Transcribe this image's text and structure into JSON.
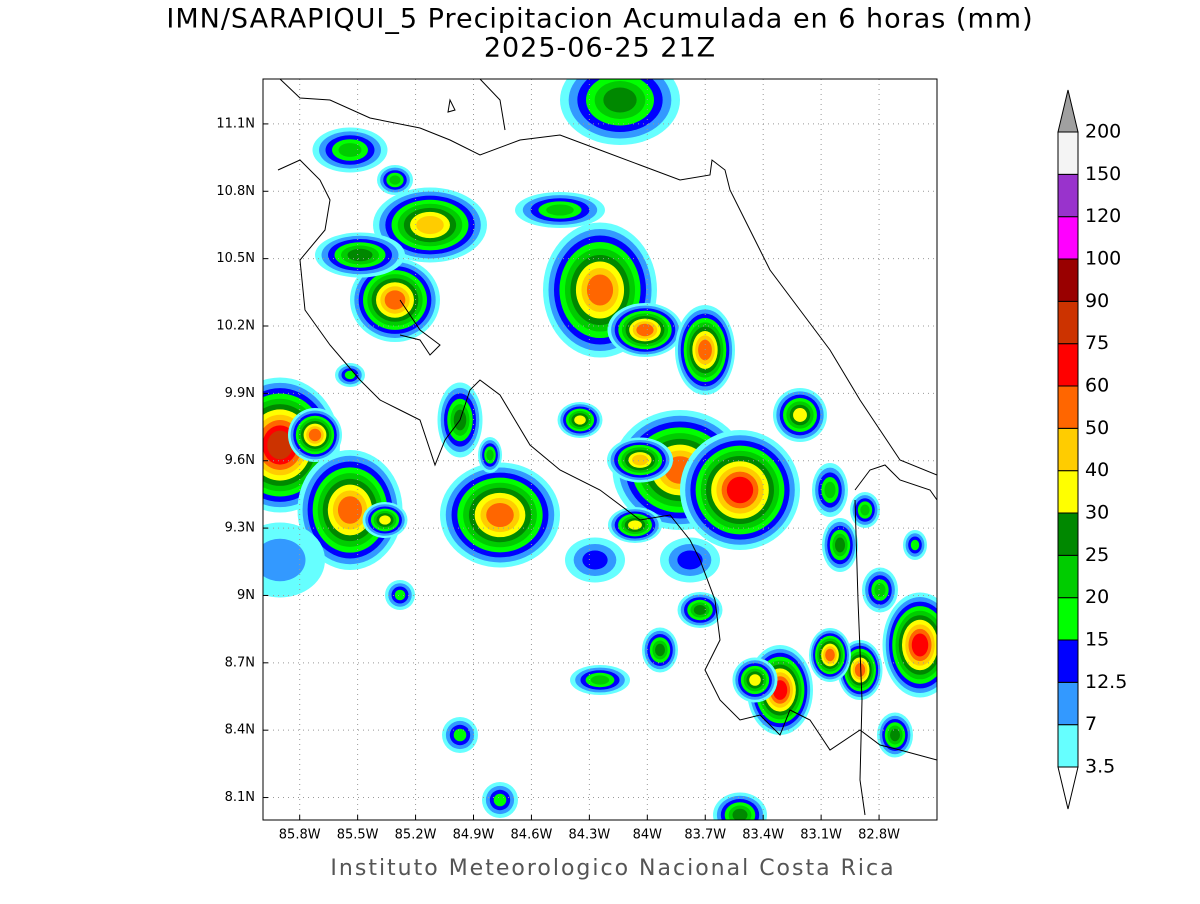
{
  "header": {
    "title": "IMN/SARAPIQUI_5 Precipitacion Acumulada en 6 horas (mm)",
    "subtitle": "2025-06-25 21Z"
  },
  "map": {
    "lonlim": [
      -85.99,
      -82.5
    ],
    "latlim": [
      8.0,
      11.3
    ],
    "grid": true,
    "lon_ticks": [
      {
        "value": -85.8,
        "label": "85.8W"
      },
      {
        "value": -85.5,
        "label": "85.5W"
      },
      {
        "value": -85.2,
        "label": "85.2W"
      },
      {
        "value": -84.9,
        "label": "84.9W"
      },
      {
        "value": -84.6,
        "label": "84.6W"
      },
      {
        "value": -84.3,
        "label": "84.3W"
      },
      {
        "value": -84.0,
        "label": "84W"
      },
      {
        "value": -83.7,
        "label": "83.7W"
      },
      {
        "value": -83.4,
        "label": "83.4W"
      },
      {
        "value": -83.1,
        "label": "83.1W"
      },
      {
        "value": -82.8,
        "label": "82.8W"
      }
    ],
    "lat_ticks": [
      {
        "value": 11.1,
        "label": "11.1N"
      },
      {
        "value": 10.8,
        "label": "10.8N"
      },
      {
        "value": 10.5,
        "label": "10.5N"
      },
      {
        "value": 10.2,
        "label": "10.2N"
      },
      {
        "value": 9.9,
        "label": "9.9N"
      },
      {
        "value": 9.6,
        "label": "9.6N"
      },
      {
        "value": 9.3,
        "label": "9.3N"
      },
      {
        "value": 9.0,
        "label": "9N"
      },
      {
        "value": 8.7,
        "label": "8.7N"
      },
      {
        "value": 8.4,
        "label": "8.4N"
      },
      {
        "value": 8.1,
        "label": "8.1N"
      }
    ]
  },
  "colorbar": {
    "levels": [
      3.5,
      7,
      12.5,
      15,
      20,
      25,
      30,
      40,
      50,
      60,
      75,
      90,
      100,
      120,
      150,
      200
    ],
    "colors": [
      "#66ffff",
      "#3399ff",
      "#0000ff",
      "#00ff00",
      "#00cc00",
      "#008800",
      "#ffff00",
      "#ffcc00",
      "#ff6600",
      "#ff0000",
      "#cc3300",
      "#990000",
      "#ff00ff",
      "#9933cc",
      "#f4f4f4"
    ],
    "under_color": "#ffffff",
    "over_color": "#a0a0a0"
  },
  "footer": "Instituto Meteorologico Nacional Costa Rica"
}
